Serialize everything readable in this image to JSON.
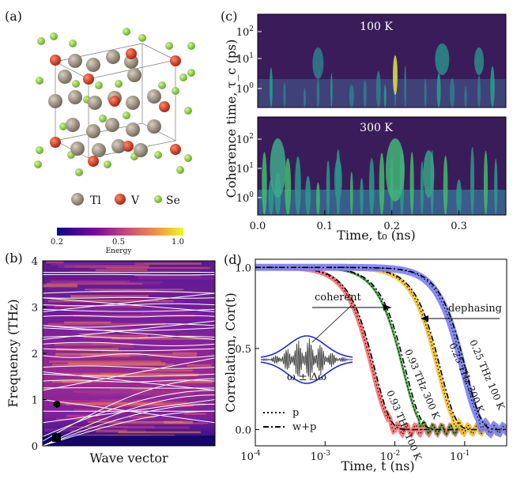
{
  "panels": {
    "a": {
      "label": "(a)",
      "legend": [
        {
          "symbol": "Tl",
          "color": "#8a7f6f"
        },
        {
          "symbol": "V",
          "color": "#d23a1e"
        },
        {
          "symbol": "Se",
          "color": "#8fd43a"
        }
      ]
    },
    "b": {
      "label": "(b)",
      "colorbar": {
        "label": "Energy",
        "ticks": [
          "0.2",
          "0.5",
          "1.0"
        ],
        "colors": [
          "#0d0887",
          "#7e03a8",
          "#cc4778",
          "#f89540",
          "#f0f921"
        ]
      },
      "markers": [
        {
          "shape": "circle",
          "frequency": 0.9
        },
        {
          "shape": "square",
          "frequency": 0.18
        }
      ]
    },
    "c": {
      "label": "(c)",
      "subpanel_titles": [
        "100 K",
        "300 K"
      ]
    },
    "d": {
      "label": "(d)",
      "annotations": {
        "coherent": "coherent",
        "dephasing": "dephasing",
        "envelope": "ω ± Δω"
      },
      "curve_labels": [
        "0.93 THz 100 K",
        "0.93 THz 300 K",
        "0.25 THz 300 K",
        "0.25 THz 100 K"
      ],
      "legend": [
        {
          "label": "p",
          "style": "dotted"
        },
        {
          "label": "w+p",
          "style": "dashdot"
        }
      ]
    }
  },
  "chart_data": [
    {
      "panel": "b",
      "type": "heatmap",
      "title": "",
      "xlabel": "Wave vector",
      "ylabel": "Frequency (THz)",
      "ylim": [
        0,
        4
      ],
      "yticks": [
        "0",
        "1",
        "2",
        "3",
        "4"
      ],
      "grid": false
    },
    {
      "panel": "c",
      "type": "heatmap",
      "xlabel": "Time, t₀ (ns)",
      "ylabel": "Coherence time, τ_c (ps)",
      "xlim": [
        0,
        0.37
      ],
      "xticks": [
        "0.0",
        "0.1",
        "0.2",
        "0.3"
      ],
      "yscale": "log",
      "yticks": [
        "10⁰",
        "10¹",
        "10²"
      ],
      "log_exponents": [
        "0",
        "1",
        "2"
      ],
      "grid": false
    },
    {
      "panel": "d",
      "type": "line",
      "xlabel": "Time, t (ns)",
      "ylabel": "Correlation, Cor(t)",
      "xscale": "log",
      "xlim": [
        0.0001,
        0.4
      ],
      "xticks": [
        "10⁻⁴",
        "10⁻³",
        "10⁻²",
        "10⁻¹"
      ],
      "log_exponents": [
        "-4",
        "-3",
        "-2",
        "-1"
      ],
      "ylim": [
        -0.1,
        1.05
      ],
      "yticks": [
        "0.0",
        "0.5",
        "1.0"
      ],
      "grid": false,
      "series": [
        {
          "color": "#f87171",
          "half_decay_time": 0.004
        },
        {
          "color": "#3a9d35",
          "half_decay_time": 0.011
        },
        {
          "color": "#f5c43c",
          "half_decay_time": 0.035
        },
        {
          "color": "#7b7ff0",
          "half_decay_time": 0.08
        }
      ]
    }
  ]
}
